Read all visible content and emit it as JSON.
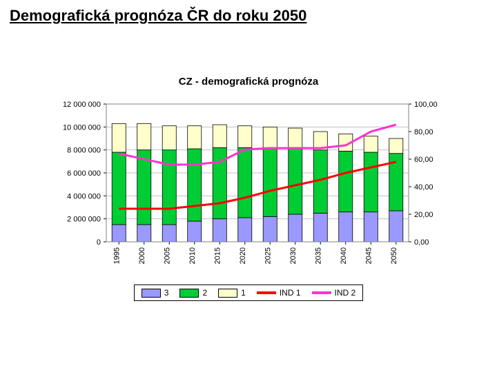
{
  "page_title": "Demografická prognóza ČR do roku 2050",
  "chart": {
    "type": "stacked-bar-dual-axis-lines",
    "title": "CZ - demografická prognóza",
    "title_fontsize": 15,
    "background_color": "#ffffff",
    "plot_border_color": "#808080",
    "grid_color": "#c0c0c0",
    "label_fontsize": 11,
    "bar_width_ratio": 0.55,
    "categories": [
      "1995",
      "2000",
      "2005",
      "2010",
      "2015",
      "2020",
      "2025",
      "2030",
      "2035",
      "2040",
      "2045",
      "2050"
    ],
    "left_axis": {
      "min": 0,
      "max": 12000000,
      "step": 2000000,
      "tick_labels": [
        "0",
        "2 000 000",
        "4 000 000",
        "6 000 000",
        "8 000 000",
        "10 000 000",
        "12 000 000"
      ]
    },
    "right_axis": {
      "min": 0,
      "max": 100,
      "step": 20,
      "tick_labels": [
        "0,00",
        "20,00",
        "40,00",
        "60,00",
        "80,00",
        "100,00"
      ]
    },
    "stack_series": [
      {
        "name": "3",
        "color": "#9999ff",
        "border": "#000000",
        "values": [
          1500000,
          1500000,
          1500000,
          1800000,
          2000000,
          2100000,
          2200000,
          2400000,
          2500000,
          2600000,
          2600000,
          2700000
        ]
      },
      {
        "name": "2",
        "color": "#00cc33",
        "border": "#000000",
        "values": [
          6300000,
          6500000,
          6500000,
          6300000,
          6200000,
          6100000,
          6000000,
          5800000,
          5500000,
          5300000,
          5200000,
          5000000
        ]
      },
      {
        "name": "1",
        "color": "#ffffcc",
        "border": "#000000",
        "values": [
          2500000,
          2300000,
          2100000,
          2000000,
          2000000,
          1900000,
          1800000,
          1700000,
          1600000,
          1500000,
          1400000,
          1300000
        ]
      }
    ],
    "line_series": [
      {
        "name": "IND 1",
        "color": "#ff0000",
        "width": 3,
        "axis": "right",
        "values": [
          24,
          24,
          24,
          26,
          28,
          32,
          37,
          41,
          45,
          50,
          54,
          58
        ]
      },
      {
        "name": "IND 2",
        "color": "#ff33cc",
        "width": 3,
        "axis": "right",
        "values": [
          64,
          60,
          56,
          56,
          58,
          67,
          68,
          68,
          68,
          70,
          80,
          85
        ]
      }
    ],
    "legend": {
      "border_color": "#000000",
      "items": [
        {
          "kind": "swatch",
          "label": "3",
          "fill": "#9999ff"
        },
        {
          "kind": "swatch",
          "label": "2",
          "fill": "#00cc33"
        },
        {
          "kind": "swatch",
          "label": "1",
          "fill": "#ffffcc"
        },
        {
          "kind": "line",
          "label": "IND 1",
          "color": "#ff0000"
        },
        {
          "kind": "line",
          "label": "IND 2",
          "color": "#ff33cc"
        }
      ]
    }
  }
}
